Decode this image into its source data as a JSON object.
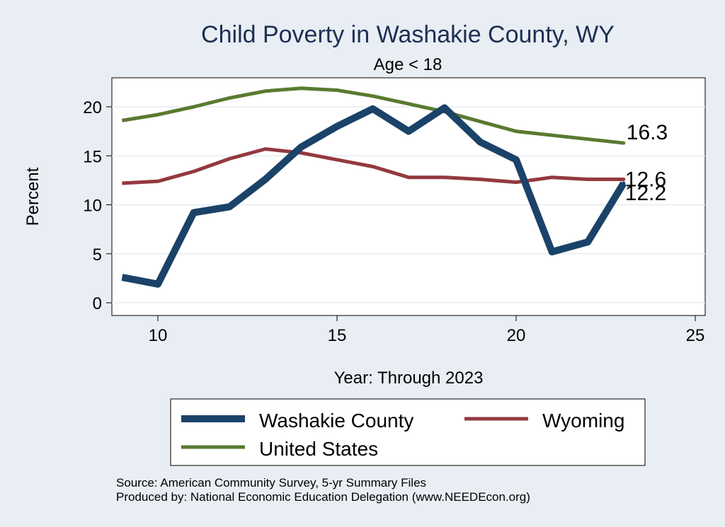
{
  "chart_data": {
    "type": "line",
    "title": "Child Poverty in Washakie County, WY",
    "subtitle": "Age < 18",
    "xlabel": "Year: Through 2023",
    "ylabel": "Percent",
    "xlim": [
      9,
      25
    ],
    "ylim": [
      0,
      22
    ],
    "xticks": [
      10,
      15,
      20,
      25
    ],
    "yticks": [
      0,
      5,
      10,
      15,
      20
    ],
    "grid": true,
    "legend_position": "bottom",
    "x": [
      9,
      10,
      11,
      12,
      13,
      14,
      15,
      16,
      17,
      18,
      19,
      20,
      21,
      22,
      23
    ],
    "series": [
      {
        "name": "Washakie County",
        "color": "#1b4268",
        "end_label": "12.2",
        "values": [
          2.6,
          1.9,
          9.2,
          9.8,
          12.6,
          15.9,
          18.0,
          19.8,
          17.5,
          19.9,
          16.4,
          14.6,
          5.2,
          6.2,
          12.2
        ]
      },
      {
        "name": "Wyoming",
        "color": "#93393f",
        "end_label": "12.6",
        "values": [
          12.2,
          12.4,
          13.4,
          14.7,
          15.7,
          15.3,
          14.6,
          13.9,
          12.8,
          12.8,
          12.6,
          12.3,
          12.8,
          12.6,
          12.6
        ]
      },
      {
        "name": "United States",
        "color": "#5a7a30",
        "end_label": "16.3",
        "values": [
          18.6,
          19.2,
          20.0,
          20.9,
          21.6,
          21.9,
          21.7,
          21.1,
          20.3,
          19.5,
          18.5,
          17.5,
          17.1,
          16.7,
          16.3
        ]
      }
    ]
  },
  "footer": {
    "source": "Source: American Community Survey, 5-yr Summary Files",
    "produced_by": "Produced by: National Economic Education Delegation (www.NEEDEcon.org)"
  }
}
